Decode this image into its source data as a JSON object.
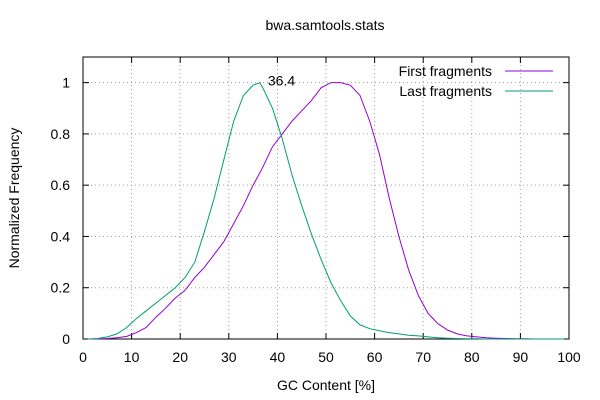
{
  "chart_data": {
    "type": "line",
    "title": "bwa.samtools.stats",
    "xlabel": "GC Content [%]",
    "ylabel": "Normalized Frequency",
    "xlim": [
      0,
      100
    ],
    "ylim": [
      0,
      1.1
    ],
    "xticks": [
      0,
      10,
      20,
      30,
      40,
      50,
      60,
      70,
      80,
      90,
      100
    ],
    "yticks": [
      0,
      0.2,
      0.4,
      0.6,
      0.8,
      1
    ],
    "grid": true,
    "legend_position": "top-right",
    "annotation": {
      "text": "36.4",
      "x": 36.4,
      "y": 1.0
    },
    "series": [
      {
        "name": "First fragments",
        "color": "#9400d3",
        "x": [
          1,
          3,
          5,
          7,
          9,
          11,
          13,
          15,
          17,
          19,
          21,
          23,
          25,
          27,
          29,
          31,
          33,
          35,
          37,
          39,
          41,
          43,
          45,
          47,
          49,
          51,
          53,
          55,
          57,
          59,
          61,
          63,
          65,
          67,
          69,
          71,
          73,
          75,
          77,
          79,
          81,
          83,
          85,
          87,
          89,
          91,
          93,
          95,
          97,
          99
        ],
        "y": [
          0,
          0,
          0.002,
          0.005,
          0.01,
          0.025,
          0.045,
          0.085,
          0.12,
          0.16,
          0.19,
          0.24,
          0.28,
          0.33,
          0.38,
          0.45,
          0.52,
          0.6,
          0.67,
          0.75,
          0.8,
          0.85,
          0.89,
          0.93,
          0.98,
          1.0,
          1.0,
          0.99,
          0.95,
          0.85,
          0.72,
          0.55,
          0.4,
          0.27,
          0.17,
          0.1,
          0.06,
          0.035,
          0.02,
          0.012,
          0.008,
          0.005,
          0.003,
          0.002,
          0.001,
          0.001,
          0,
          0,
          0,
          0
        ]
      },
      {
        "name": "Last fragments",
        "color": "#009e73",
        "x": [
          1,
          3,
          5,
          7,
          9,
          11,
          13,
          15,
          17,
          19,
          21,
          23,
          25,
          27,
          29,
          31,
          33,
          35,
          36.4,
          37,
          39,
          41,
          43,
          45,
          47,
          49,
          51,
          53,
          55,
          57,
          59,
          61,
          63,
          65,
          67,
          69,
          71,
          73,
          75,
          77,
          79,
          81,
          83,
          85,
          87,
          89,
          91,
          93,
          95,
          97,
          99
        ],
        "y": [
          0,
          0.002,
          0.008,
          0.02,
          0.045,
          0.08,
          0.11,
          0.14,
          0.17,
          0.2,
          0.24,
          0.3,
          0.42,
          0.55,
          0.7,
          0.85,
          0.95,
          0.99,
          1.0,
          0.98,
          0.9,
          0.78,
          0.64,
          0.52,
          0.41,
          0.31,
          0.22,
          0.15,
          0.09,
          0.055,
          0.04,
          0.032,
          0.025,
          0.02,
          0.015,
          0.012,
          0.008,
          0.005,
          0.003,
          0.002,
          0.001,
          0.001,
          0,
          0,
          0,
          0,
          0,
          0,
          0,
          0,
          0
        ]
      }
    ]
  }
}
